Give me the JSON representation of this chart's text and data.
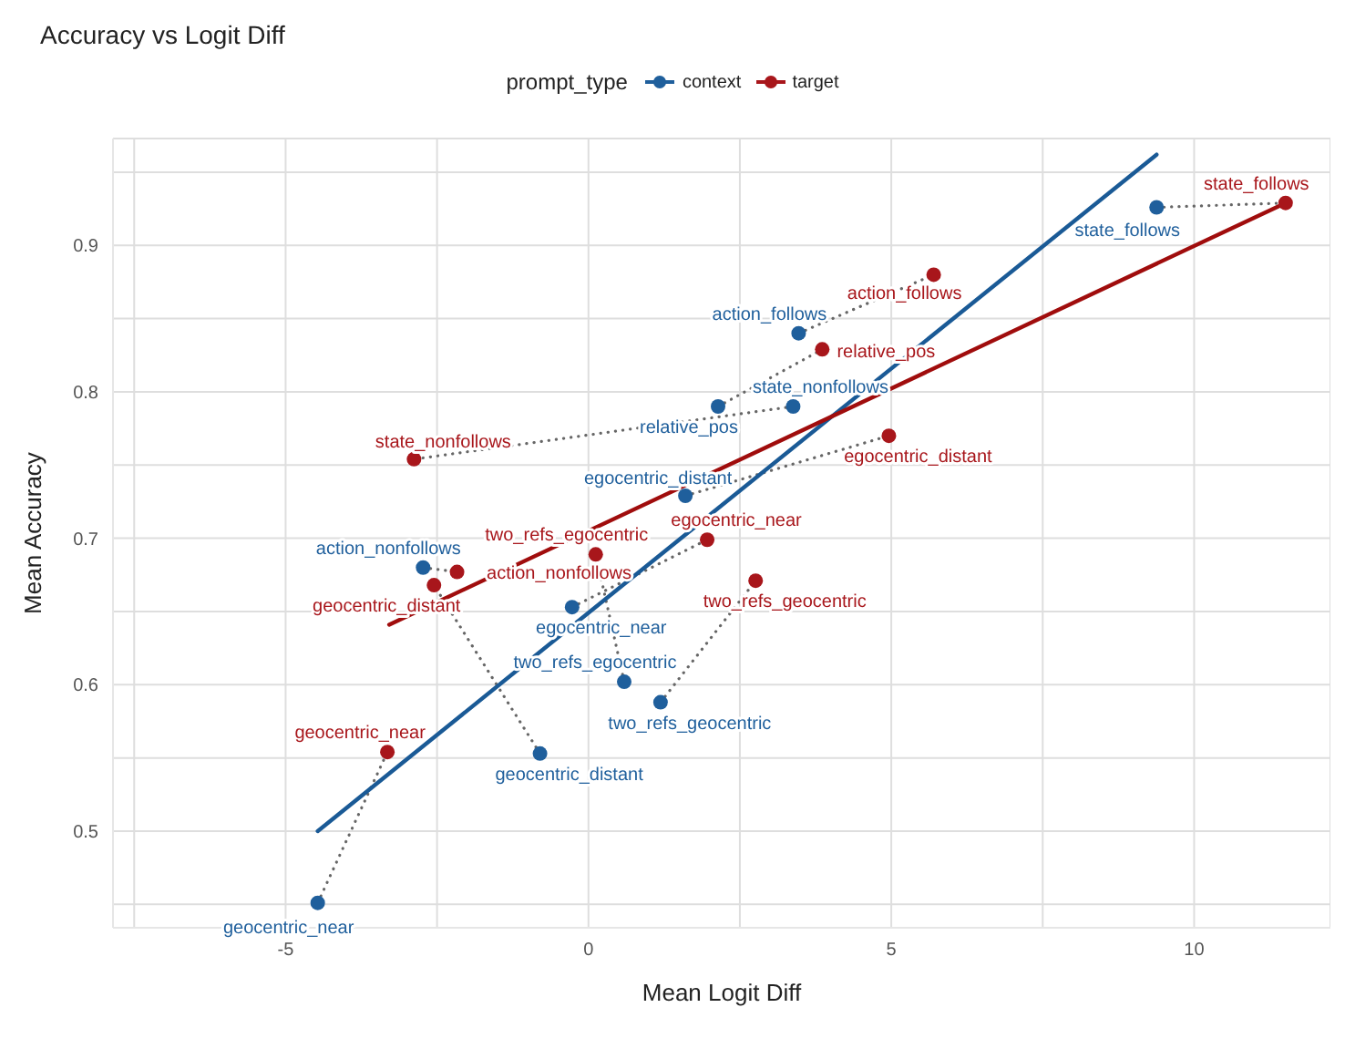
{
  "chart_data": {
    "type": "scatter",
    "title": "Accuracy vs Logit Diff",
    "xlabel": "Mean Logit Diff",
    "ylabel": "Mean Accuracy",
    "legend_title": "prompt_type",
    "legend": "top",
    "grid": true,
    "marker": "circle",
    "xlim": [
      -7.85,
      12.25
    ],
    "ylim": [
      0.434,
      0.973
    ],
    "xticks": [
      {
        "value": -7.5,
        "label": null
      },
      -5,
      {
        "value": -2.5,
        "label": null
      },
      0,
      {
        "value": 2.5,
        "label": null
      },
      5,
      {
        "value": 7.5,
        "label": null
      },
      10
    ],
    "yticks": [
      {
        "value": 0.45,
        "label": null
      },
      0.5,
      {
        "value": 0.55,
        "label": null
      },
      0.6,
      {
        "value": 0.65,
        "label": null
      },
      0.7,
      {
        "value": 0.75,
        "label": null
      },
      0.8,
      {
        "value": 0.85,
        "label": null
      },
      0.9,
      {
        "value": 0.95,
        "label": null
      }
    ],
    "series": [
      {
        "type": "line",
        "color": "#666666",
        "line_style": "dotted",
        "marker": "none",
        "x": [
          9.38,
          11.51
        ],
        "values": [
          0.926,
          0.929
        ]
      },
      {
        "type": "line",
        "color": "#666666",
        "line_style": "dotted",
        "marker": "none",
        "x": [
          3.47,
          5.7
        ],
        "values": [
          0.84,
          0.88
        ]
      },
      {
        "type": "line",
        "color": "#666666",
        "line_style": "dotted",
        "marker": "none",
        "x": [
          2.14,
          3.86
        ],
        "values": [
          0.79,
          0.829
        ]
      },
      {
        "type": "line",
        "color": "#666666",
        "line_style": "dotted",
        "marker": "none",
        "x": [
          3.38,
          -2.88
        ],
        "values": [
          0.79,
          0.754
        ]
      },
      {
        "type": "line",
        "color": "#666666",
        "line_style": "dotted",
        "marker": "none",
        "x": [
          1.6,
          4.96
        ],
        "values": [
          0.729,
          0.77
        ]
      },
      {
        "type": "line",
        "color": "#666666",
        "line_style": "dotted",
        "marker": "none",
        "x": [
          -2.73,
          -2.17
        ],
        "values": [
          0.68,
          0.677
        ]
      },
      {
        "type": "line",
        "color": "#666666",
        "line_style": "dotted",
        "marker": "none",
        "x": [
          -0.27,
          1.96
        ],
        "values": [
          0.653,
          0.699
        ]
      },
      {
        "type": "line",
        "color": "#666666",
        "line_style": "dotted",
        "marker": "none",
        "x": [
          0.59,
          0.12
        ],
        "values": [
          0.602,
          0.689
        ]
      },
      {
        "type": "line",
        "color": "#666666",
        "line_style": "dotted",
        "marker": "none",
        "x": [
          1.19,
          2.76
        ],
        "values": [
          0.588,
          0.671
        ]
      },
      {
        "type": "line",
        "color": "#666666",
        "line_style": "dotted",
        "marker": "none",
        "x": [
          -0.8,
          -2.55
        ],
        "values": [
          0.553,
          0.668
        ]
      },
      {
        "type": "line",
        "color": "#666666",
        "line_style": "dotted",
        "marker": "none",
        "x": [
          -4.47,
          -3.32
        ],
        "values": [
          0.451,
          0.554
        ]
      },
      {
        "type": "line",
        "color": "#1a5a96",
        "line_style": "solid",
        "marker": "none",
        "x": [
          -4.47,
          9.38
        ],
        "values": [
          0.5,
          0.962
        ]
      },
      {
        "type": "line",
        "color": "#a00d0d",
        "line_style": "solid",
        "marker": "none",
        "x": [
          -3.29,
          11.51
        ],
        "values": [
          0.641,
          0.929
        ]
      },
      {
        "name": "context",
        "color": "#1f5f9c",
        "x": [
          9.38,
          3.47,
          2.14,
          3.38,
          1.6,
          -2.73,
          -0.27,
          0.59,
          1.19,
          -0.8,
          -4.47
        ],
        "values": [
          0.926,
          0.84,
          0.79,
          0.79,
          0.729,
          0.68,
          0.653,
          0.602,
          0.588,
          0.553,
          0.451
        ],
        "value_labels": [
          "state_follows",
          "action_follows",
          "relative_pos",
          "state_nonfollows",
          "egocentric_distant",
          "action_nonfollows",
          "egocentric_near",
          "two_refs_egocentric",
          "two_refs_geocentric",
          "geocentric_distant",
          "geocentric_near"
        ]
      },
      {
        "name": "target",
        "color": "#a8161b",
        "x": [
          11.51,
          5.7,
          3.86,
          -2.88,
          4.96,
          -2.17,
          1.96,
          0.12,
          2.76,
          -2.55,
          -3.32
        ],
        "values": [
          0.929,
          0.88,
          0.829,
          0.754,
          0.77,
          0.677,
          0.699,
          0.689,
          0.671,
          0.668,
          0.554
        ],
        "value_labels": [
          "state_follows",
          "action_follows",
          "relative_pos",
          "state_nonfollows",
          "egocentric_distant",
          "action_nonfollows",
          "egocentric_near",
          "two_refs_egocentric",
          "two_refs_geocentric",
          "geocentric_distant",
          "geocentric_near"
        ]
      }
    ]
  }
}
